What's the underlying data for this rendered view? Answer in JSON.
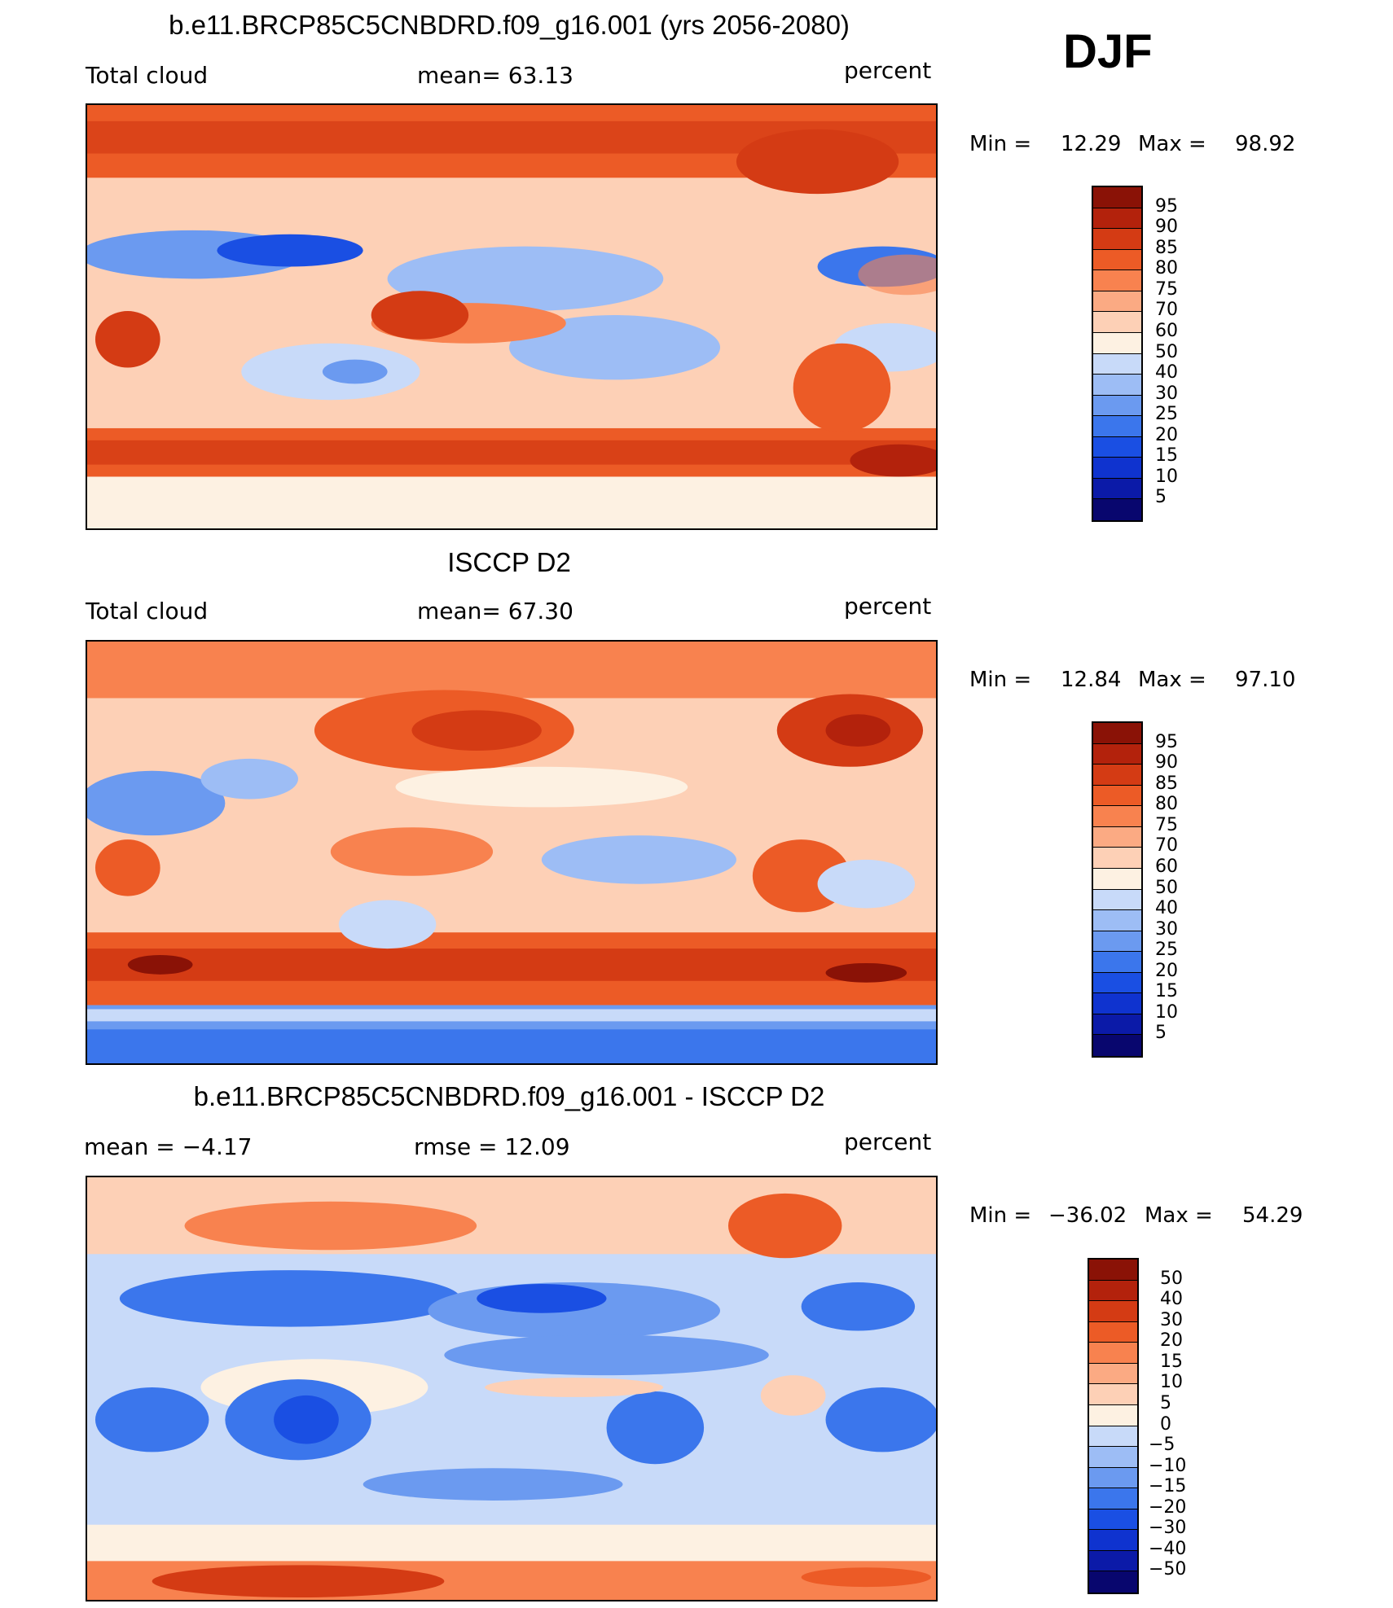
{
  "season": "DJF",
  "colors": {
    "standard": [
      "#08066e",
      "#0b1aa8",
      "#0f33cf",
      "#1a4fe3",
      "#3b76ec",
      "#6b9af0",
      "#9dbdf5",
      "#c8daf9",
      "#fdf1e2",
      "#fdd0b6",
      "#fbaa83",
      "#f8824f",
      "#ec5b26",
      "#d43b14",
      "#b3220c",
      "#8a1206"
    ],
    "difference": [
      "#08066e",
      "#0b1aa8",
      "#0f33cf",
      "#1a4fe3",
      "#3b76ec",
      "#6b9af0",
      "#9dbdf5",
      "#c8daf9",
      "#fdf1e2",
      "#fdd0b6",
      "#fbaa83",
      "#f8824f",
      "#ec5b26",
      "#d43b14",
      "#b3220c",
      "#8a1206"
    ],
    "coast": "#000000"
  },
  "panels": [
    {
      "title": "b.e11.BRCP85C5CNBDRD.f09_g16.001 (yrs 2056-2080)",
      "left_label": "Total cloud",
      "mid_label": "mean=   63.13",
      "units": "percent",
      "min_label": "Min =",
      "min_value": "12.29",
      "max_label": "Max =",
      "max_value": "98.92",
      "colorbar_labels": [
        "95",
        "90",
        "85",
        "80",
        "75",
        "70",
        "60",
        "50",
        "40",
        "30",
        "25",
        "20",
        "15",
        "10",
        "5"
      ]
    },
    {
      "title": "ISCCP D2",
      "left_label": "Total cloud",
      "mid_label": "mean=   67.30",
      "units": "percent",
      "min_label": "Min =",
      "min_value": "12.84",
      "max_label": "Max =",
      "max_value": "97.10",
      "colorbar_labels": [
        "95",
        "90",
        "85",
        "80",
        "75",
        "70",
        "60",
        "50",
        "40",
        "30",
        "25",
        "20",
        "15",
        "10",
        "5"
      ]
    },
    {
      "title": "b.e11.BRCP85C5CNBDRD.f09_g16.001 - ISCCP D2",
      "left_label": "mean =   −4.17",
      "mid_label": "rmse =   12.09",
      "units": "percent",
      "min_label": "Min =",
      "min_value": "−36.02",
      "max_label": "Max =",
      "max_value": "54.29",
      "colorbar_labels": [
        "50",
        "40",
        "30",
        "20",
        "15",
        "10",
        "5",
        "0",
        "−5",
        "−10",
        "−15",
        "−20",
        "−30",
        "−40",
        "−50"
      ]
    }
  ],
  "chart_data": [
    {
      "type": "heatmap",
      "title": "b.e11.BRCP85C5CNBDRD.f09_g16.001 (yrs 2056-2080)",
      "variable": "Total cloud",
      "units": "percent",
      "mean": 63.13,
      "min": 12.29,
      "max": 98.92,
      "contour_levels": [
        5,
        10,
        15,
        20,
        25,
        30,
        40,
        50,
        60,
        70,
        75,
        80,
        85,
        90,
        95
      ]
    },
    {
      "type": "heatmap",
      "title": "ISCCP D2",
      "variable": "Total cloud",
      "units": "percent",
      "mean": 67.3,
      "min": 12.84,
      "max": 97.1,
      "contour_levels": [
        5,
        10,
        15,
        20,
        25,
        30,
        40,
        50,
        60,
        70,
        75,
        80,
        85,
        90,
        95
      ]
    },
    {
      "type": "heatmap",
      "title": "b.e11.BRCP85C5CNBDRD.f09_g16.001 - ISCCP D2",
      "units": "percent",
      "mean": -4.17,
      "rmse": 12.09,
      "min": -36.02,
      "max": 54.29,
      "contour_levels": [
        -50,
        -40,
        -30,
        -20,
        -15,
        -10,
        -5,
        0,
        5,
        10,
        15,
        20,
        30,
        40,
        50
      ]
    }
  ]
}
